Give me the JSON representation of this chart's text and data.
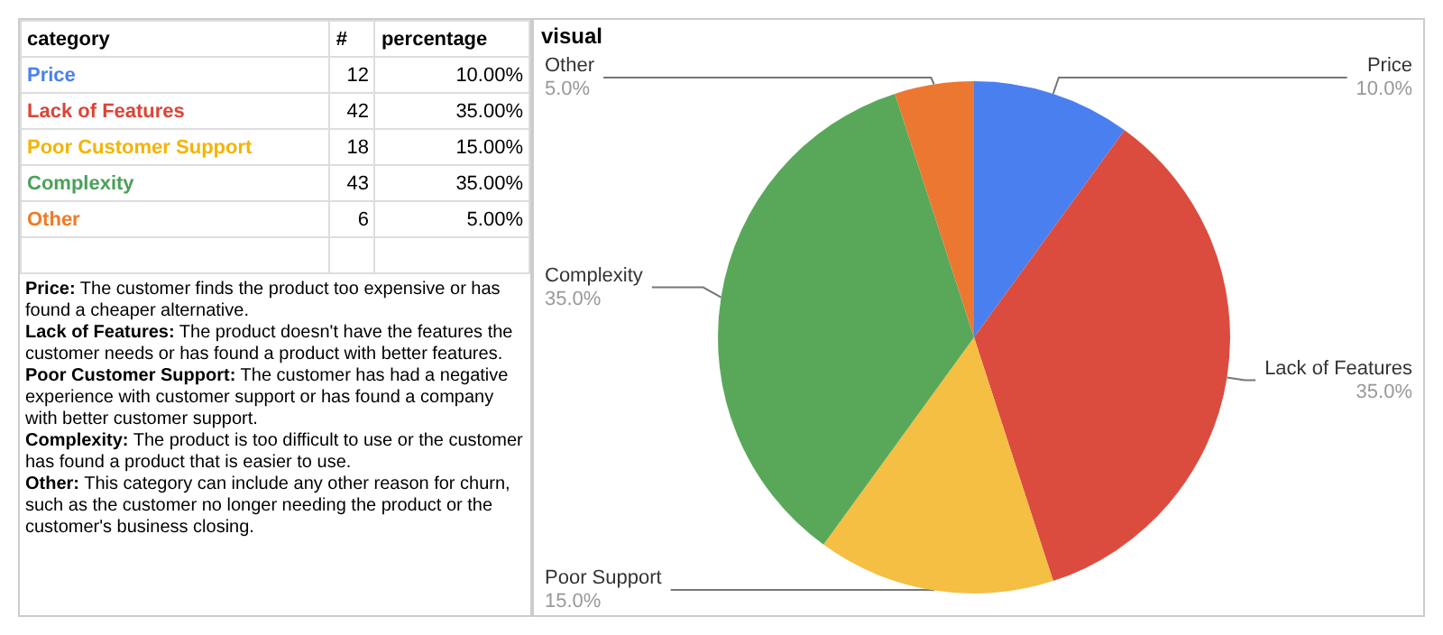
{
  "chart_data": [
    {
      "type": "other",
      "xlabel": "category",
      "categories": [
        "Price",
        "Lack of Features",
        "Poor Customer Support",
        "Complexity",
        "Other"
      ],
      "colors": [
        "#4a7ff0",
        "#db4437",
        "#f4b400",
        "#4aa15a",
        "#f07a25"
      ],
      "data_labels": true,
      "series": [
        {
          "name": "#",
          "values": [
            12,
            42,
            18,
            43,
            6
          ]
        },
        {
          "name": "percentage",
          "values": [
            10,
            35,
            15,
            35,
            5
          ],
          "value_labels": [
            "10.00%",
            "35.00%",
            "15.00%",
            "35.00%",
            "5.00%"
          ]
        }
      ],
      "annotations": [
        "Price: The customer finds the product too expensive or has found a cheaper alternative.",
        "Lack of Features: The product doesn't have the features the customer needs or has found a product with better features.",
        "Poor Customer Support: The customer has had a negative experience with customer support or has found a company with better customer support.",
        "Complexity: The product is too difficult to use or the customer has found a product that is easier to use.",
        "Other: This category can include any other reason for churn, such as the customer no longer needing the product or the customer's business closing."
      ]
    },
    {
      "type": "pie",
      "title": "visual",
      "categories": [
        "Price",
        "Lack of Features",
        "Poor Support",
        "Complexity",
        "Other"
      ],
      "values": [
        10,
        35,
        15,
        35,
        5
      ],
      "colors": [
        "#4a7ff0",
        "#db4c3f",
        "#f4bf42",
        "#59a85a",
        "#ec7730"
      ],
      "value_labels": [
        "10.0%",
        "35.0%",
        "15.0%",
        "35.0%",
        "5.0%"
      ]
    }
  ]
}
